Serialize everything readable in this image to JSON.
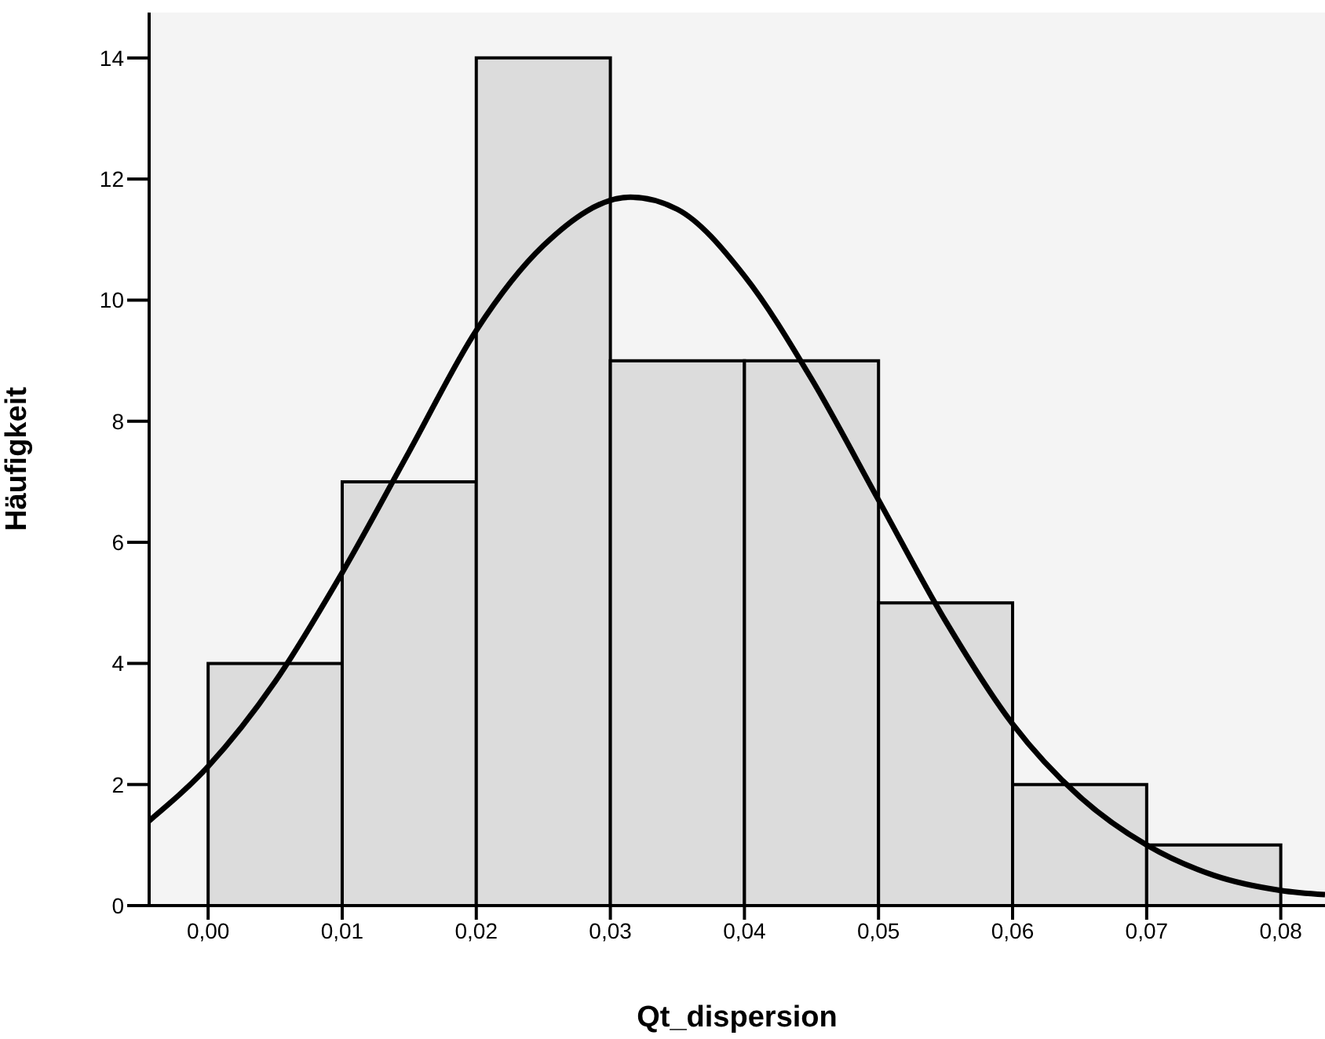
{
  "chart_data": {
    "type": "histogram",
    "xlabel": "Qt_dispersion",
    "ylabel": "Häufigkeit",
    "xlim": [
      -0.0044,
      0.0833
    ],
    "ylim": [
      0,
      14.75
    ],
    "xticks": [
      {
        "value": 0,
        "label": "0,00"
      },
      {
        "value": 0.01,
        "label": "0,01"
      },
      {
        "value": 0.02,
        "label": "0,02"
      },
      {
        "value": 0.03,
        "label": "0,03"
      },
      {
        "value": 0.04,
        "label": "0,04"
      },
      {
        "value": 0.05,
        "label": "0,05"
      },
      {
        "value": 0.06,
        "label": "0,06"
      },
      {
        "value": 0.07,
        "label": "0,07"
      },
      {
        "value": 0.08,
        "label": "0,08"
      }
    ],
    "yticks": [
      0,
      2,
      4,
      6,
      8,
      10,
      12,
      14
    ],
    "grid": false,
    "series": [
      {
        "type": "histogram",
        "color": "#dcdcdc",
        "bins": [
          0,
          0.01,
          0.02,
          0.03,
          0.04,
          0.05,
          0.06,
          0.07,
          0.08
        ],
        "values": [
          4,
          7,
          14,
          9,
          9,
          5,
          2,
          1
        ]
      },
      {
        "type": "line",
        "color": "#000000",
        "x": [
          -0.0044,
          0,
          0.005,
          0.01,
          0.015,
          0.02,
          0.025,
          0.0315,
          0.035,
          0.04,
          0.045,
          0.05,
          0.055,
          0.06,
          0.065,
          0.07,
          0.075,
          0.08,
          0.0833
        ],
        "values": [
          1.4,
          2.3,
          3.7,
          5.5,
          7.5,
          9.5,
          10.9,
          11.7,
          11.5,
          10.4,
          8.7,
          6.7,
          4.7,
          3.0,
          1.8,
          1.0,
          0.5,
          0.25,
          0.18
        ]
      }
    ]
  }
}
